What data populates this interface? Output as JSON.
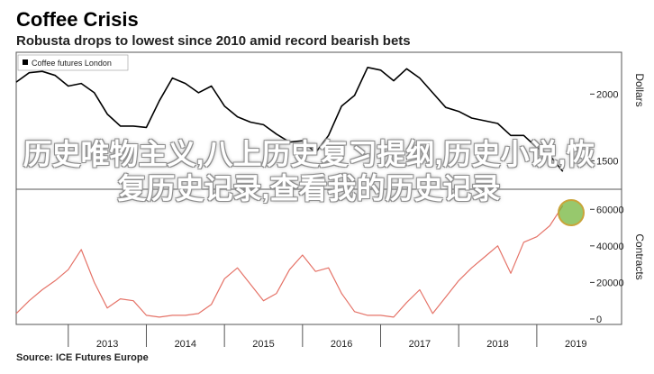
{
  "header": {
    "title": "Coffee Crisis",
    "subtitle": "Robusta drops to lowest since 2010 amid record bearish bets"
  },
  "source": "Source: ICE Futures Europe",
  "overlay_text": "历史唯物主义,八上历史复习提纲,历史小说,恢复历史记录,查看我的历史记录",
  "colors": {
    "price_line": "#000000",
    "contracts_line": "#e57368",
    "panel_border": "#555555",
    "highlight": "#74b53c"
  },
  "chart_data": [
    {
      "type": "line",
      "legend": [
        "Coffee futures London"
      ],
      "ylabel": "Dollars",
      "ytick_labels": [
        "1500",
        "2000"
      ],
      "ylim": [
        1300,
        2300
      ],
      "x": [
        "2012-05",
        "2012-07",
        "2012-09",
        "2012-11",
        "2013-01",
        "2013-03",
        "2013-05",
        "2013-07",
        "2013-09",
        "2013-11",
        "2014-01",
        "2014-03",
        "2014-05",
        "2014-07",
        "2014-09",
        "2014-11",
        "2015-01",
        "2015-03",
        "2015-05",
        "2015-07",
        "2015-09",
        "2015-11",
        "2016-01",
        "2016-03",
        "2016-05",
        "2016-07",
        "2016-09",
        "2016-11",
        "2017-01",
        "2017-03",
        "2017-05",
        "2017-07",
        "2017-09",
        "2017-11",
        "2018-01",
        "2018-03",
        "2018-05",
        "2018-07",
        "2018-09",
        "2018-11",
        "2019-01",
        "2019-03",
        "2019-05"
      ],
      "series": [
        {
          "values": [
            2090,
            2160,
            2170,
            2140,
            2060,
            2080,
            2010,
            1850,
            1760,
            1760,
            1750,
            1950,
            2120,
            2080,
            2010,
            2060,
            1910,
            1830,
            1790,
            1770,
            1700,
            1640,
            1650,
            1560,
            1690,
            1910,
            1990,
            2200,
            2180,
            2100,
            2190,
            2120,
            2010,
            1900,
            1870,
            1820,
            1800,
            1780,
            1690,
            1690,
            1600,
            1540,
            1420
          ]
        }
      ]
    },
    {
      "type": "line",
      "legend": [],
      "ylabel": "Contracts",
      "ytick_labels": [
        "0",
        "20000",
        "40000",
        "60000"
      ],
      "ylim": [
        -2000,
        70000
      ],
      "x": [
        "2012-05",
        "2012-07",
        "2012-09",
        "2012-11",
        "2013-01",
        "2013-03",
        "2013-05",
        "2013-07",
        "2013-09",
        "2013-11",
        "2014-01",
        "2014-03",
        "2014-05",
        "2014-07",
        "2014-09",
        "2014-11",
        "2015-01",
        "2015-03",
        "2015-05",
        "2015-07",
        "2015-09",
        "2015-11",
        "2016-01",
        "2016-03",
        "2016-05",
        "2016-07",
        "2016-09",
        "2016-11",
        "2017-01",
        "2017-03",
        "2017-05",
        "2017-07",
        "2017-09",
        "2017-11",
        "2018-01",
        "2018-03",
        "2018-05",
        "2018-07",
        "2018-09",
        "2018-11",
        "2019-01",
        "2019-03",
        "2019-05"
      ],
      "series": [
        {
          "values": [
            3000,
            10000,
            16000,
            21000,
            27000,
            38000,
            20000,
            6000,
            11000,
            10000,
            2000,
            1000,
            2000,
            2000,
            3000,
            8000,
            22000,
            28000,
            19000,
            10000,
            14000,
            27000,
            35000,
            26000,
            28000,
            14000,
            4000,
            2000,
            2000,
            1000,
            9000,
            16000,
            3000,
            12000,
            21000,
            28000,
            34000,
            40000,
            25000,
            42000,
            45000,
            51000,
            62000
          ]
        }
      ]
    }
  ],
  "x_axis": {
    "tick_labels": [
      "2013",
      "2014",
      "2015",
      "2016",
      "2017",
      "2018",
      "2019"
    ]
  }
}
